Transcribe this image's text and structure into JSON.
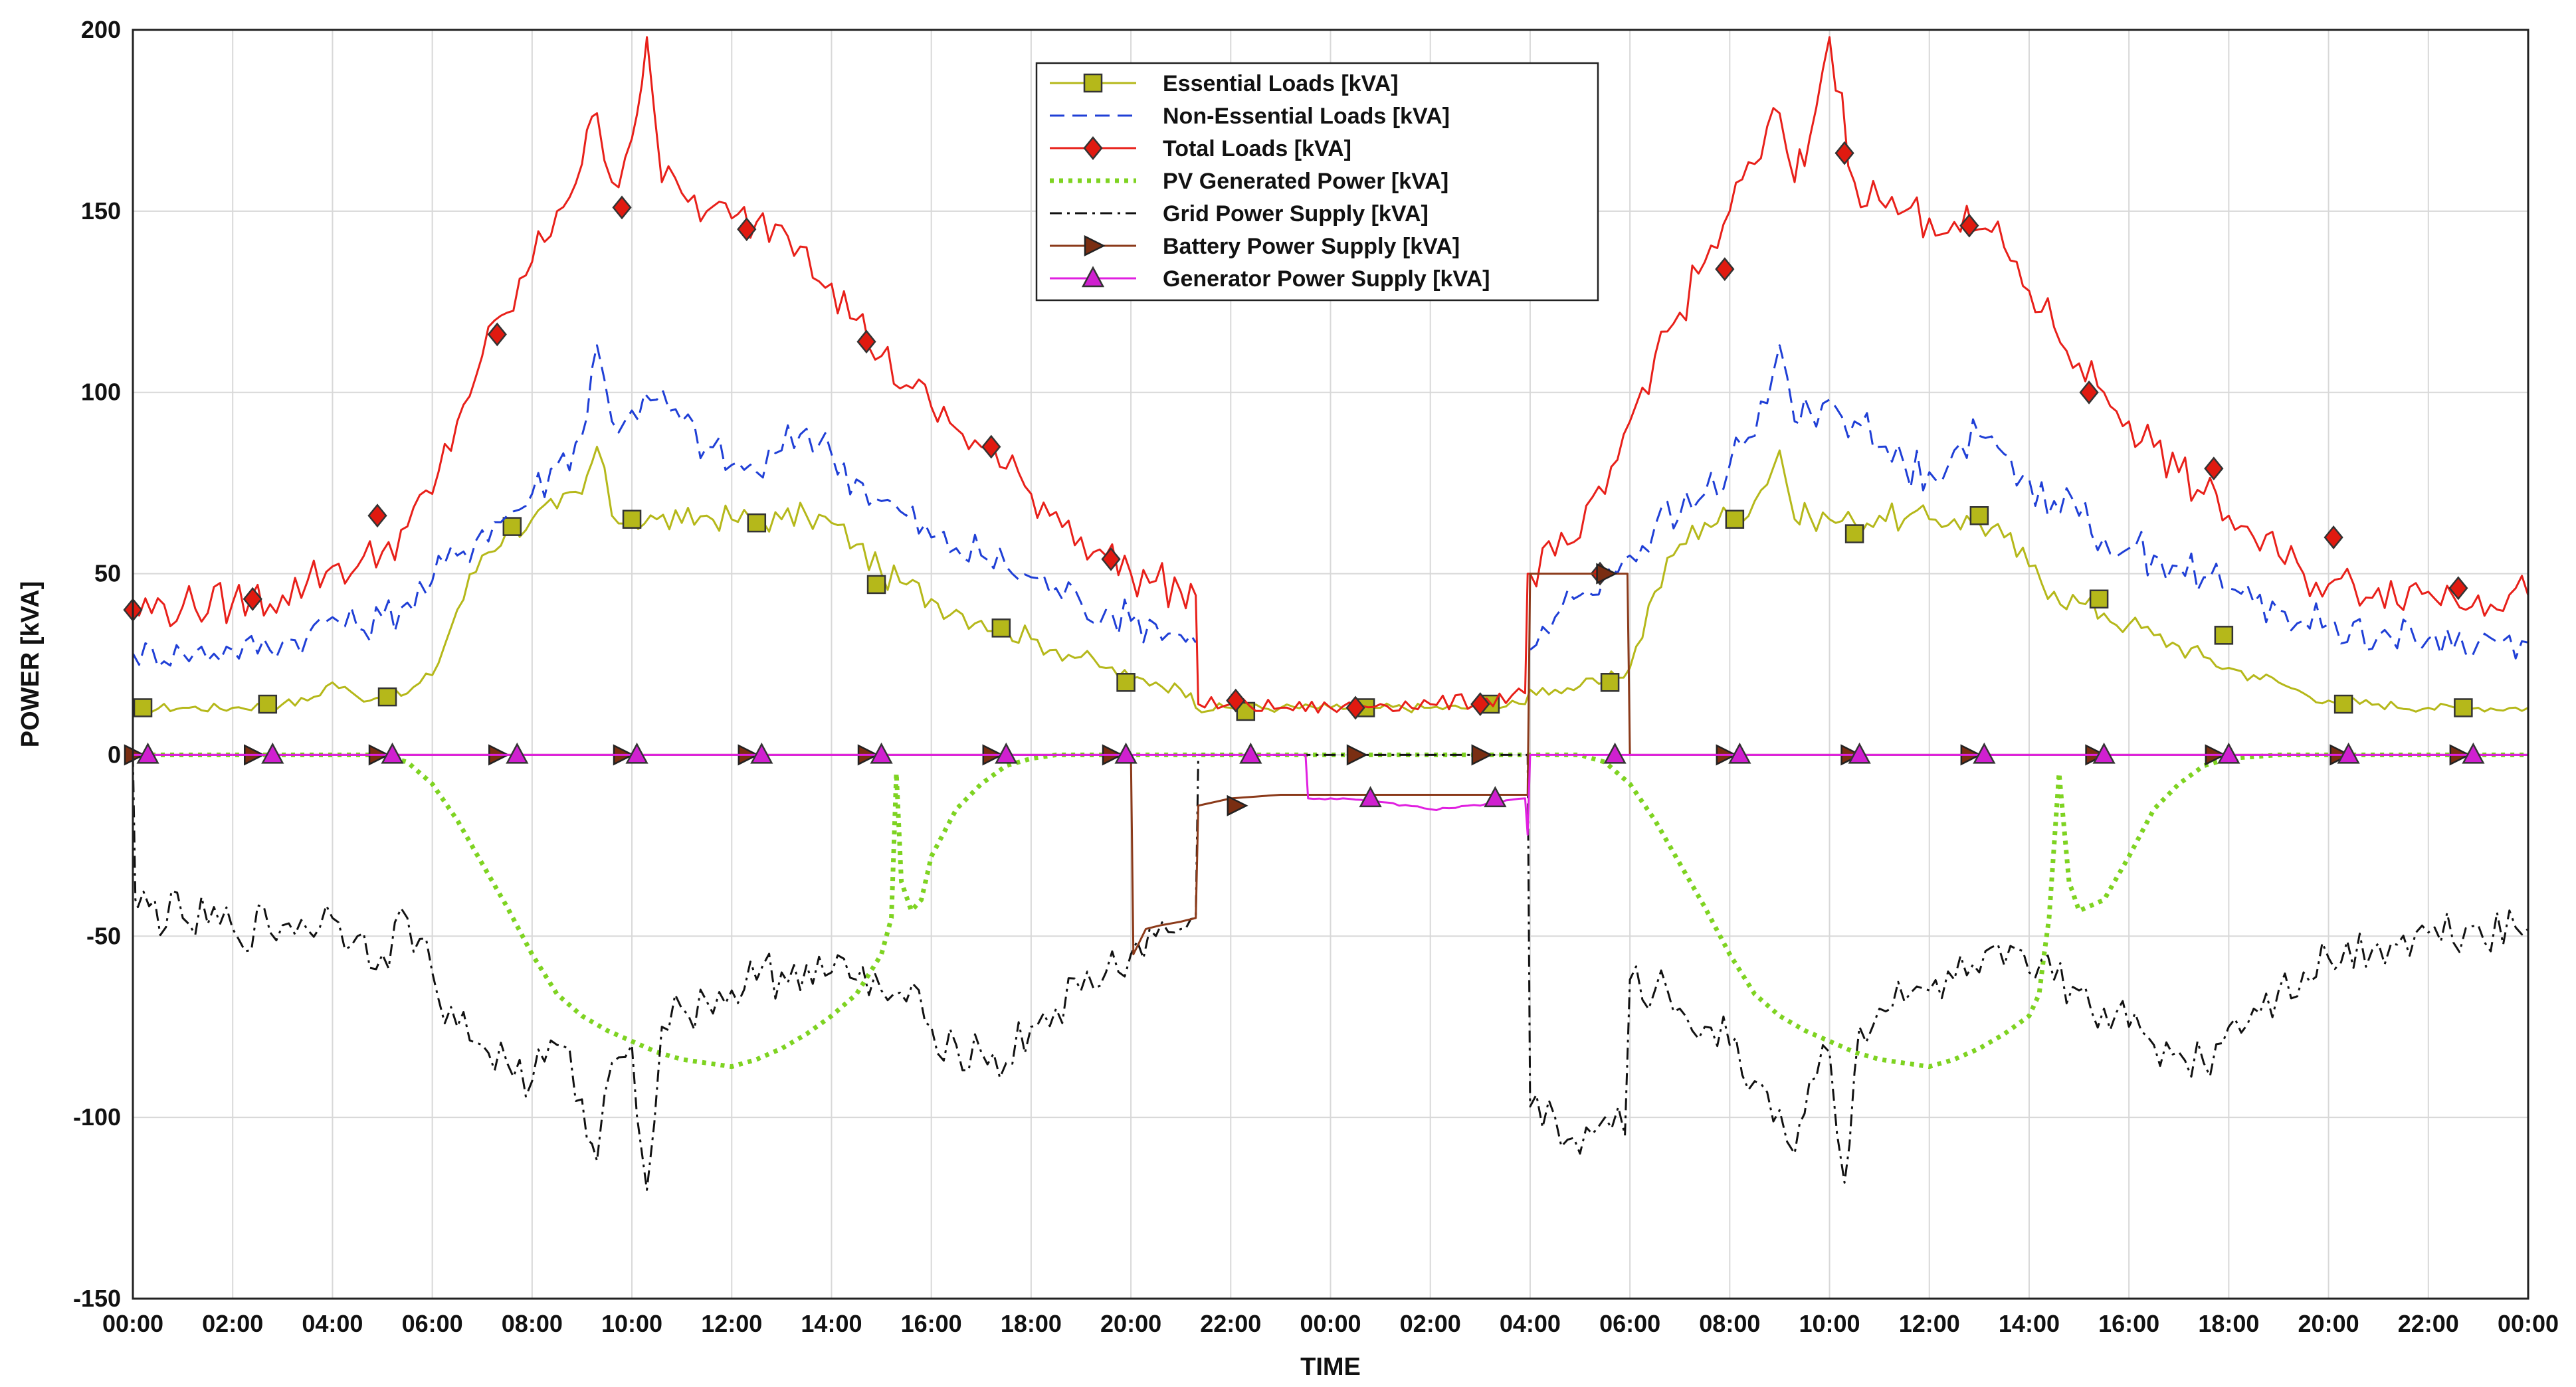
{
  "chart_data": {
    "type": "line",
    "title": "",
    "xlabel": "TIME",
    "ylabel": "POWER [kVA]",
    "ylim": [
      -150,
      200
    ],
    "yticks": [
      -150,
      -100,
      -50,
      0,
      50,
      100,
      150,
      200
    ],
    "xlim": [
      0,
      48
    ],
    "x_tick_labels": [
      "00:00",
      "02:00",
      "04:00",
      "06:00",
      "08:00",
      "10:00",
      "12:00",
      "14:00",
      "16:00",
      "18:00",
      "20:00",
      "22:00",
      "00:00",
      "02:00",
      "04:00",
      "06:00",
      "08:00",
      "10:00",
      "12:00",
      "14:00",
      "16:00",
      "18:00",
      "20:00",
      "22:00",
      "00:00"
    ],
    "grid": true,
    "legend_position": "top-center",
    "series": [
      {
        "name": "Essential Loads [kVA]",
        "color": "#b5b81a",
        "line": "solid",
        "marker": "square",
        "marker_fill": "#b5b81a",
        "x": [
          0,
          1,
          2,
          3,
          3.5,
          4,
          4.5,
          5,
          5.5,
          6,
          6.5,
          7,
          7.5,
          8,
          8.5,
          9,
          9.3,
          9.6,
          10,
          10.5,
          11,
          11.5,
          12,
          12.5,
          13,
          13.5,
          14,
          14.5,
          15,
          15.5,
          16,
          16.5,
          17,
          17.5,
          18,
          18.5,
          19,
          19.5,
          20,
          20.5,
          21,
          21.2,
          21.3,
          22,
          23,
          24,
          25,
          26,
          27,
          27.9,
          28,
          28.5,
          29,
          29.5,
          30,
          30.5,
          31,
          31.5,
          32,
          32.5,
          33,
          33.3,
          33.6,
          34,
          34.5,
          35,
          35.5,
          36,
          36.5,
          37,
          37.5,
          38,
          38.5,
          39,
          39.5,
          40,
          40.5,
          41,
          41.5,
          42,
          42.5,
          43,
          43.5,
          44,
          45,
          46,
          47,
          48
        ],
        "values": [
          13,
          13,
          13,
          14,
          15,
          20,
          16,
          16,
          17,
          22,
          40,
          55,
          62,
          65,
          68,
          72,
          85,
          66,
          65,
          65,
          64,
          66,
          65,
          65,
          65,
          66,
          64,
          58,
          50,
          47,
          43,
          40,
          37,
          35,
          32,
          29,
          27,
          24,
          21,
          20,
          18,
          17,
          13,
          13,
          13,
          13,
          13,
          13,
          13,
          14,
          18,
          18,
          19,
          20,
          24,
          45,
          58,
          64,
          66,
          70,
          84,
          65,
          66,
          65,
          64,
          66,
          65,
          65,
          65,
          64,
          60,
          52,
          45,
          42,
          39,
          36,
          33,
          30,
          27,
          24,
          22,
          20,
          17,
          15,
          14,
          13,
          13,
          13
        ],
        "marker_x": [
          0.2,
          2.7,
          5.1,
          7.6,
          10.0,
          12.5,
          14.9,
          17.4,
          19.9,
          22.3,
          24.7,
          27.2,
          29.6,
          32.1,
          34.5,
          37.0,
          39.4,
          41.9,
          44.3,
          46.7
        ],
        "marker_y": [
          13,
          14,
          16,
          63,
          65,
          64,
          47,
          35,
          20,
          12,
          13,
          14,
          20,
          65,
          61,
          66,
          43,
          33,
          14,
          13
        ]
      },
      {
        "name": "Non-Essential Loads [kVA]",
        "color": "#1f3fd6",
        "line": "dashed",
        "marker": "none",
        "x": [
          0,
          1,
          2,
          3,
          3.5,
          4,
          4.5,
          5,
          5.5,
          6,
          6.5,
          7,
          7.5,
          8,
          8.5,
          9,
          9.3,
          9.6,
          10,
          10.5,
          11,
          11.5,
          12,
          12.5,
          13,
          13.5,
          14,
          14.5,
          15,
          15.5,
          16,
          16.5,
          17,
          17.5,
          18,
          18.5,
          19,
          19.5,
          20,
          20.5,
          21,
          21.3
        ],
        "values": [
          28,
          28,
          29,
          31,
          33,
          38,
          35,
          38,
          42,
          48,
          55,
          62,
          66,
          72,
          80,
          88,
          113,
          92,
          95,
          98,
          92,
          85,
          80,
          78,
          84,
          90,
          83,
          76,
          70,
          66,
          60,
          57,
          55,
          52,
          49,
          46,
          42,
          40,
          37,
          36,
          33,
          31
        ],
        "x2": [
          28,
          28.5,
          29,
          29.5,
          30,
          30.5,
          31,
          31.5,
          32,
          32.5,
          33,
          33.3,
          33.6,
          34,
          34.5,
          35,
          35.5,
          36,
          36.5,
          37,
          37.5,
          38,
          38.5,
          39,
          39.5,
          40,
          40.5,
          41,
          41.5,
          42,
          42.5,
          43,
          43.5,
          44,
          45,
          46,
          47,
          48
        ],
        "values2": [
          29,
          38,
          44,
          50,
          55,
          63,
          66,
          72,
          80,
          88,
          113,
          92,
          95,
          98,
          92,
          85,
          80,
          78,
          84,
          88,
          83,
          76,
          70,
          66,
          60,
          57,
          55,
          52,
          49,
          46,
          42,
          40,
          37,
          36,
          33,
          32,
          31,
          31
        ]
      },
      {
        "name": "Total Loads [kVA]",
        "color": "#e8201a",
        "line": "solid",
        "marker": "diamond",
        "marker_fill": "#e01a10",
        "x": [
          0,
          1,
          2,
          3,
          3.5,
          4,
          4.5,
          5,
          5.5,
          6,
          6.5,
          7,
          7.5,
          8,
          8.5,
          9,
          9.3,
          9.6,
          10,
          10.3,
          10.6,
          11,
          11.5,
          12,
          12.5,
          13,
          13.5,
          14,
          14.5,
          15,
          15.5,
          16,
          16.5,
          17,
          17.5,
          18,
          18.5,
          19,
          19.5,
          20,
          20.5,
          21,
          21.3,
          21.35,
          22,
          23,
          24,
          25,
          26,
          27,
          27.9,
          27.95,
          28,
          28.5,
          29,
          29.5,
          30,
          30.5,
          31,
          31.5,
          32,
          32.5,
          33,
          33.3,
          33.6,
          34,
          34.5,
          35,
          35.5,
          36,
          36.5,
          37,
          37.5,
          38,
          38.5,
          39,
          39.5,
          40,
          40.5,
          41,
          41.5,
          42,
          42.5,
          43,
          43.5,
          44,
          45,
          46,
          47,
          48
        ],
        "values": [
          40,
          41,
          42,
          44,
          48,
          52,
          52,
          56,
          63,
          72,
          92,
          110,
          122,
          136,
          150,
          163,
          177,
          158,
          170,
          198,
          158,
          155,
          150,
          148,
          147,
          146,
          140,
          130,
          120,
          110,
          102,
          96,
          90,
          85,
          79,
          72,
          67,
          60,
          55,
          50,
          48,
          45,
          44,
          14,
          14,
          13,
          13,
          14,
          14,
          15,
          17,
          50,
          50,
          55,
          60,
          72,
          92,
          110,
          122,
          136,
          150,
          163,
          177,
          158,
          170,
          198,
          158,
          153,
          150,
          148,
          147,
          145,
          140,
          128,
          118,
          108,
          100,
          92,
          85,
          78,
          72,
          66,
          60,
          55,
          50,
          47,
          46,
          45,
          44,
          44
        ],
        "marker_x": [
          0.0,
          2.4,
          4.9,
          7.3,
          9.8,
          12.3,
          14.7,
          17.2,
          19.6,
          22.1,
          24.5,
          27.0,
          29.4,
          31.9,
          34.3,
          36.8,
          39.2,
          41.7,
          44.1,
          46.6
        ],
        "marker_y": [
          40,
          43,
          66,
          116,
          151,
          145,
          114,
          85,
          54,
          15,
          13,
          14,
          50,
          134,
          166,
          146,
          100,
          79,
          60,
          46
        ]
      },
      {
        "name": "PV Generated Power [kVA]",
        "color": "#7ed321",
        "line": "dotted",
        "marker": "none",
        "x": [
          0,
          5,
          5.5,
          6,
          6.5,
          7,
          7.5,
          8,
          8.5,
          9,
          9.5,
          10,
          10.5,
          11,
          11.5,
          12,
          12.5,
          13,
          13.5,
          14,
          14.5,
          15,
          15.2,
          15.3,
          15.4,
          15.6,
          15.8,
          16,
          16.5,
          17,
          17.5,
          18,
          18.5,
          19,
          20,
          21,
          22,
          23,
          24,
          25,
          26,
          27,
          28,
          29,
          29.5,
          30,
          30.5,
          31,
          31.5,
          32,
          32.5,
          33,
          33.5,
          34,
          34.5,
          35,
          35.5,
          36,
          36.5,
          37,
          37.5,
          38,
          38.2,
          38.3,
          38.4,
          38.6,
          38.8,
          39,
          39.5,
          40,
          40.5,
          41,
          41.5,
          42,
          43,
          48
        ],
        "values": [
          0,
          0,
          -2,
          -8,
          -18,
          -30,
          -42,
          -55,
          -66,
          -72,
          -76,
          -79,
          -82,
          -84,
          -85,
          -86,
          -84,
          -81,
          -77,
          -72,
          -66,
          -55,
          -45,
          -5,
          -35,
          -43,
          -40,
          -28,
          -15,
          -8,
          -3,
          -1,
          0,
          0,
          0,
          0,
          0,
          0,
          0,
          0,
          0,
          0,
          0,
          0,
          -2,
          -8,
          -18,
          -30,
          -42,
          -55,
          -66,
          -72,
          -76,
          -79,
          -82,
          -84,
          -85,
          -86,
          -84,
          -81,
          -77,
          -72,
          -66,
          -55,
          -45,
          -5,
          -35,
          -43,
          -40,
          -28,
          -15,
          -8,
          -3,
          -1,
          0,
          0
        ]
      },
      {
        "name": "Grid Power Supply [kVA]",
        "color": "#111111",
        "line": "dashdot",
        "marker": "none",
        "x": [
          0,
          0.05,
          0.1,
          1,
          2,
          3,
          4,
          4.5,
          5,
          5.5,
          6,
          6.5,
          7,
          7.5,
          8,
          8.5,
          9,
          9.3,
          9.6,
          10,
          10.3,
          10.6,
          11,
          11.5,
          12,
          12.5,
          13,
          13.5,
          14,
          14.5,
          15,
          15.5,
          16,
          16.5,
          17,
          17.5,
          18,
          18.5,
          19,
          19.5,
          20,
          20.5,
          21,
          21.3,
          21.35,
          27.95,
          28,
          28.5,
          29,
          29.5,
          29.9,
          30,
          30.5,
          31,
          31.5,
          32,
          32.5,
          33,
          33.3,
          33.6,
          34,
          34.3,
          34.6,
          35,
          35.5,
          36,
          36.5,
          37,
          37.5,
          38,
          38.5,
          39,
          39.5,
          40,
          40.5,
          41,
          41.5,
          42,
          42.5,
          43,
          43.5,
          44,
          45,
          46,
          47,
          48
        ],
        "values": [
          0,
          -40,
          -42,
          -45,
          -48,
          -47,
          -45,
          -50,
          -55,
          -45,
          -60,
          -75,
          -80,
          -85,
          -90,
          -80,
          -95,
          -112,
          -85,
          -80,
          -120,
          -75,
          -70,
          -68,
          -65,
          -62,
          -60,
          -58,
          -60,
          -62,
          -65,
          -68,
          -75,
          -80,
          -82,
          -85,
          -75,
          -70,
          -65,
          -60,
          -55,
          -50,
          -48,
          -45,
          0,
          0,
          -97,
          -100,
          -110,
          -100,
          -105,
          -62,
          -65,
          -70,
          -75,
          -80,
          -90,
          -98,
          -110,
          -90,
          -82,
          -118,
          -75,
          -70,
          -68,
          -65,
          -62,
          -60,
          -58,
          -60,
          -62,
          -65,
          -70,
          -75,
          -80,
          -82,
          -85,
          -75,
          -70,
          -65,
          -60,
          -56,
          -52,
          -49,
          -47,
          -48
        ]
      },
      {
        "name": "Battery Power Supply [kVA]",
        "color": "#8b3a1a",
        "line": "solid",
        "marker": "triangle-right",
        "marker_fill": "#7a2e12",
        "x": [
          0,
          20,
          20.05,
          20.3,
          20.6,
          21,
          21.3,
          21.35,
          22,
          23,
          24,
          25,
          26,
          27,
          27.95,
          28,
          29,
          29.95,
          30,
          48
        ],
        "values": [
          0,
          0,
          -55,
          -48,
          -47,
          -46,
          -45,
          -14,
          -12,
          -11,
          -11,
          -11,
          -11,
          -11,
          -11,
          50,
          50,
          50,
          0,
          0
        ],
        "marker_x": [
          0,
          2.4,
          4.9,
          7.3,
          9.8,
          12.3,
          14.7,
          17.2,
          19.6,
          22.1,
          24.5,
          27.0,
          29.5,
          31.9,
          34.4,
          36.8,
          39.3,
          41.7,
          44.2,
          46.6
        ],
        "marker_y": [
          0,
          0,
          0,
          0,
          0,
          0,
          0,
          0,
          0,
          -14,
          0,
          0,
          50,
          0,
          0,
          0,
          0,
          0,
          0,
          0
        ]
      },
      {
        "name": "Generator Power Supply [kVA]",
        "color": "#e020e0",
        "line": "solid",
        "marker": "triangle-up",
        "marker_fill": "#d020d0",
        "x": [
          0,
          23.5,
          23.55,
          24,
          25,
          26,
          27,
          27.9,
          27.95,
          28,
          48
        ],
        "values": [
          0,
          0,
          -12,
          -12,
          -13,
          -15,
          -14,
          -12,
          -22,
          0,
          0
        ],
        "marker_x": [
          0.3,
          2.8,
          5.2,
          7.7,
          10.1,
          12.6,
          15.0,
          17.5,
          19.9,
          22.4,
          24.8,
          27.3,
          29.7,
          32.2,
          34.6,
          37.1,
          39.5,
          42.0,
          44.4,
          46.9
        ],
        "marker_y": [
          0,
          0,
          0,
          0,
          0,
          0,
          0,
          0,
          0,
          0,
          -12,
          -12,
          0,
          0,
          0,
          0,
          0,
          0,
          0,
          0
        ]
      }
    ]
  }
}
